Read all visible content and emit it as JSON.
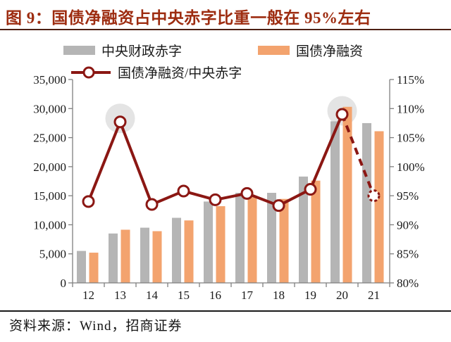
{
  "title": "图 9：国债净融资占中央赤字比重一般在 95%左右",
  "source": "资料来源：Wind，招商证券",
  "legend": {
    "central_deficit": "中央财政赤字",
    "net_financing": "国债净融资",
    "ratio": "国债净融资/中央赤字"
  },
  "colors": {
    "title": "#9d2c10",
    "bar_gray": "#b5b5b5",
    "bar_orange": "#f3a36e",
    "line_red": "#8b1713",
    "highlight": "#e4e4e4",
    "axis": "#7f7f7f",
    "text": "#1a1a1a"
  },
  "chart_data": {
    "type": "bar",
    "note": "combo bar + line chart; bars on left axis (亿元), line on right axis (%)",
    "categories": [
      "12",
      "13",
      "14",
      "15",
      "16",
      "17",
      "18",
      "19",
      "20",
      "21"
    ],
    "series": [
      {
        "name": "中央财政赤字",
        "type": "bar",
        "axis": "left",
        "values": [
          5500,
          8500,
          9500,
          11200,
          14000,
          15500,
          15500,
          18300,
          27800,
          27500
        ]
      },
      {
        "name": "国债净融资",
        "type": "bar",
        "axis": "left",
        "values": [
          5200,
          9150,
          8900,
          10750,
          13200,
          14750,
          14450,
          17600,
          30300,
          26100
        ]
      },
      {
        "name": "国债净融资/中央赤字",
        "type": "line",
        "axis": "right",
        "values": [
          94,
          107.7,
          93.5,
          95.8,
          94.3,
          95.4,
          93.3,
          96.1,
          109,
          95
        ],
        "dashed_from_index": 8,
        "highlight_indices": [
          1,
          8
        ]
      }
    ],
    "left_axis": {
      "min": 0,
      "max": 35000,
      "step": 5000,
      "tick_labels": [
        "0",
        "5,000",
        "10,000",
        "15,000",
        "20,000",
        "25,000",
        "30,000",
        "35,000"
      ]
    },
    "right_axis": {
      "min": 80,
      "max": 115,
      "step": 5,
      "tick_labels": [
        "80%",
        "85%",
        "90%",
        "95%",
        "100%",
        "105%",
        "110%",
        "115%"
      ]
    },
    "legend_position": "top",
    "grid": false
  }
}
